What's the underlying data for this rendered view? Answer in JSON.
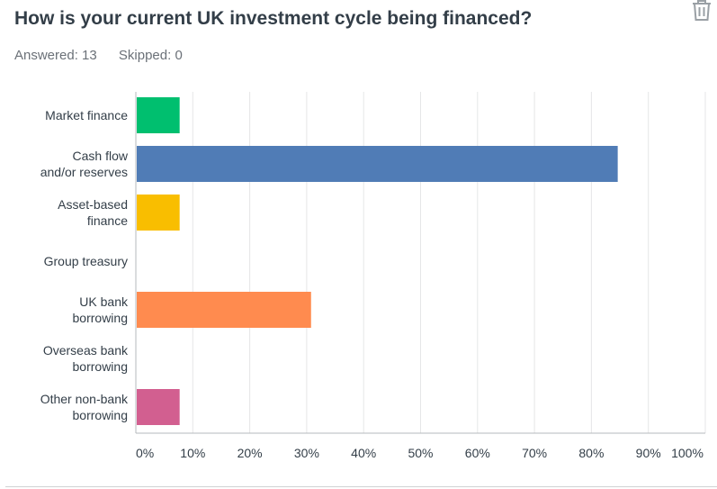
{
  "question": {
    "title": "How is your current UK investment cycle being financed?",
    "answered": "Answered: 13",
    "skipped": "Skipped: 0"
  },
  "icons": {
    "delete": "trash-icon"
  },
  "colors": {
    "market_finance": "#00bf6f",
    "cash_flow": "#507cb6",
    "asset_based": "#f9be00",
    "uk_bank": "#ff8b4f",
    "other_non_bank": "#d25f90",
    "grid": "#e5e6e7",
    "axis": "#b5b9bc"
  },
  "chart_data": {
    "type": "bar",
    "orientation": "horizontal",
    "categories": [
      [
        "Market finance"
      ],
      [
        "Cash flow",
        "and/or reserves"
      ],
      [
        "Asset-based",
        "finance"
      ],
      [
        "Group treasury"
      ],
      [
        "UK bank",
        "borrowing"
      ],
      [
        "Overseas bank",
        "borrowing"
      ],
      [
        "Other non-bank",
        "borrowing"
      ]
    ],
    "values": [
      7.69,
      84.62,
      7.69,
      0,
      30.77,
      0,
      7.69
    ],
    "bar_colors": [
      "#00bf6f",
      "#507cb6",
      "#f9be00",
      "#cccccc",
      "#ff8b4f",
      "#cccccc",
      "#d25f90"
    ],
    "x_ticks": [
      "0%",
      "10%",
      "20%",
      "30%",
      "40%",
      "50%",
      "60%",
      "70%",
      "80%",
      "90%",
      "100%"
    ],
    "xlim": [
      0,
      100
    ],
    "grid": true,
    "title": "",
    "xlabel": "",
    "ylabel": ""
  }
}
